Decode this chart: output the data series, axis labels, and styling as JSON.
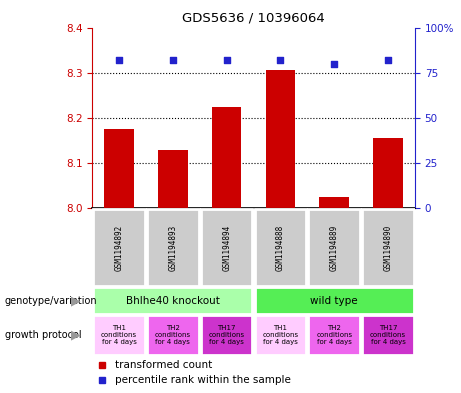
{
  "title": "GDS5636 / 10396064",
  "samples": [
    "GSM1194892",
    "GSM1194893",
    "GSM1194894",
    "GSM1194888",
    "GSM1194889",
    "GSM1194890"
  ],
  "bar_values": [
    8.175,
    8.13,
    8.225,
    8.305,
    8.025,
    8.155
  ],
  "percentile_values": [
    82,
    82,
    82,
    82,
    80,
    82
  ],
  "ylim_left": [
    8.0,
    8.4
  ],
  "ylim_right": [
    0,
    100
  ],
  "yticks_left": [
    8.0,
    8.1,
    8.2,
    8.3,
    8.4
  ],
  "yticks_right": [
    0,
    25,
    50,
    75,
    100
  ],
  "bar_color": "#cc0000",
  "dot_color": "#2222cc",
  "bar_width": 0.55,
  "genotype_groups": [
    {
      "label": "Bhlhe40 knockout",
      "start": 0,
      "end": 3,
      "color": "#aaffaa"
    },
    {
      "label": "wild type",
      "start": 3,
      "end": 6,
      "color": "#55ee55"
    }
  ],
  "growth_protocols": [
    {
      "label": "TH1\nconditions\nfor 4 days",
      "color": "#ffccff"
    },
    {
      "label": "TH2\nconditions\nfor 4 days",
      "color": "#ee66ee"
    },
    {
      "label": "TH17\nconditions\nfor 4 days",
      "color": "#cc33cc"
    },
    {
      "label": "TH1\nconditions\nfor 4 days",
      "color": "#ffccff"
    },
    {
      "label": "TH2\nconditions\nfor 4 days",
      "color": "#ee66ee"
    },
    {
      "label": "TH17\nconditions\nfor 4 days",
      "color": "#cc33cc"
    }
  ],
  "legend_red_label": "transformed count",
  "legend_blue_label": "percentile rank within the sample",
  "left_label_genotype": "genotype/variation",
  "left_label_growth": "growth protocol",
  "tick_color_left": "#cc0000",
  "tick_color_right": "#2222cc",
  "plot_bg": "#ffffff",
  "sample_box_color": "#cccccc",
  "gridline_color": "#000000"
}
